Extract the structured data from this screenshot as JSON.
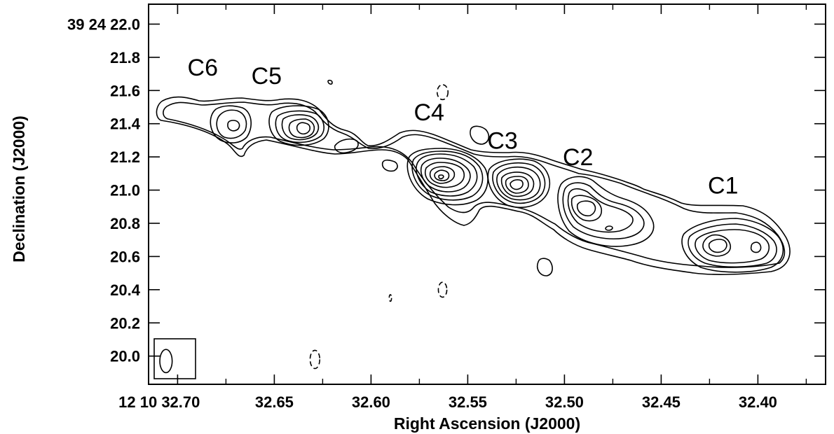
{
  "chart_data": {
    "type": "contour",
    "xlabel": "Right Ascension (J2000)",
    "ylabel": "Declination (J2000)",
    "x_axis": {
      "reversed": true,
      "range_seconds": [
        32.715,
        32.365
      ],
      "ticks": [
        {
          "value": 32.7,
          "label": "12 10 32.70"
        },
        {
          "value": 32.65,
          "label": "32.65"
        },
        {
          "value": 32.6,
          "label": "32.60"
        },
        {
          "value": 32.55,
          "label": "32.55"
        },
        {
          "value": 32.5,
          "label": "32.50"
        },
        {
          "value": 32.45,
          "label": "32.45"
        },
        {
          "value": 32.4,
          "label": "32.40"
        }
      ]
    },
    "y_axis": {
      "range_seconds": [
        19.83,
        22.12
      ],
      "ticks": [
        {
          "value": 22.0,
          "label": "39 24 22.0"
        },
        {
          "value": 21.8,
          "label": "21.8"
        },
        {
          "value": 21.6,
          "label": "21.6"
        },
        {
          "value": 21.4,
          "label": "21.4"
        },
        {
          "value": 21.2,
          "label": "21.2"
        },
        {
          "value": 21.0,
          "label": "21.0"
        },
        {
          "value": 20.8,
          "label": "20.8"
        },
        {
          "value": 20.6,
          "label": "20.6"
        },
        {
          "value": 20.4,
          "label": "20.4"
        },
        {
          "value": 20.2,
          "label": "20.2"
        },
        {
          "value": 20.0,
          "label": "20.0"
        }
      ]
    },
    "components": [
      {
        "name": "C6",
        "ra": 32.682,
        "dec": 21.38
      },
      {
        "name": "C5",
        "ra": 32.652,
        "dec": 21.35
      },
      {
        "name": "C4",
        "ra": 32.577,
        "dec": 21.06
      },
      {
        "name": "C3",
        "ra": 32.538,
        "dec": 21.0
      },
      {
        "name": "C2",
        "ra": 32.498,
        "dec": 20.85
      },
      {
        "name": "C1",
        "ra": 32.426,
        "dec": 20.66
      }
    ],
    "component_labels": [
      {
        "text": "C6",
        "ra": 32.687,
        "dec": 21.69
      },
      {
        "text": "C5",
        "ra": 32.654,
        "dec": 21.64
      },
      {
        "text": "C4",
        "ra": 32.57,
        "dec": 21.42
      },
      {
        "text": "C3",
        "ra": 32.532,
        "dec": 21.25
      },
      {
        "text": "C2",
        "ra": 32.493,
        "dec": 21.15
      },
      {
        "text": "C1",
        "ra": 32.418,
        "dec": 20.98
      }
    ],
    "negative_contours": [
      {
        "ra": 32.563,
        "dec": 21.59,
        "rx": 0.0028,
        "ry": 0.045
      },
      {
        "ra": 32.563,
        "dec": 20.4,
        "rx": 0.0022,
        "ry": 0.045
      },
      {
        "ra": 32.629,
        "dec": 19.98,
        "rx": 0.0025,
        "ry": 0.055
      },
      {
        "ra": 32.59,
        "dec": 20.35,
        "rx": 0.0006,
        "ry": 0.02
      }
    ],
    "beam": {
      "ra": 32.706,
      "dec": 19.97,
      "rx": 0.0032,
      "ry": 0.07
    },
    "grid": false,
    "legend": "none"
  }
}
